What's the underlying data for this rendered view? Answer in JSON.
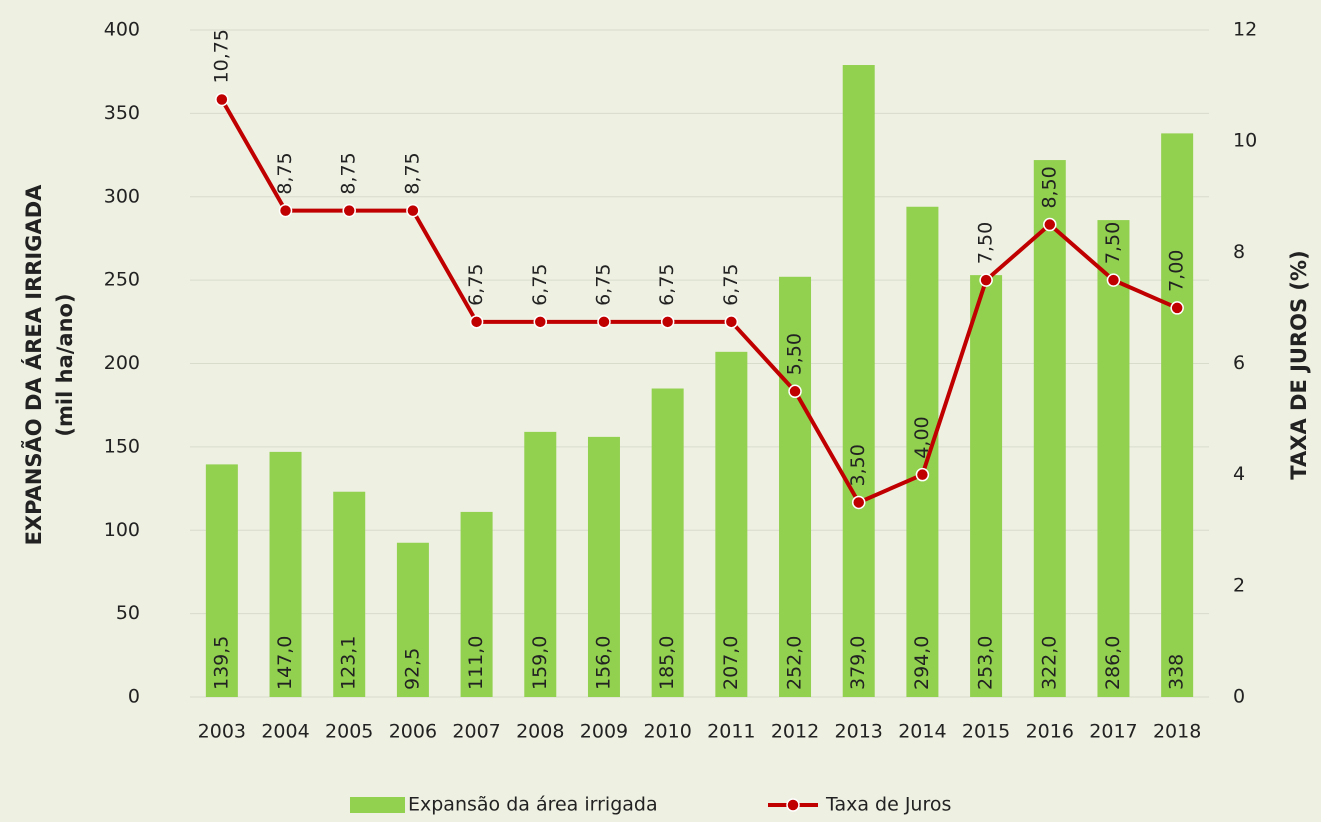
{
  "chart_data": {
    "type": "bar",
    "categories": [
      "2003",
      "2004",
      "2005",
      "2006",
      "2007",
      "2008",
      "2009",
      "2010",
      "2011",
      "2012",
      "2013",
      "2014",
      "2015",
      "2016",
      "2017",
      "2018"
    ],
    "series": [
      {
        "name": "Expansão da área irrigada",
        "color": "#92d050",
        "type": "bar",
        "values": [
          139.5,
          147,
          123.1,
          92.5,
          111,
          159,
          156,
          185,
          207,
          252,
          379,
          294,
          253,
          322,
          286,
          338
        ],
        "value_labels": [
          "139,5",
          "147,0",
          "123,1",
          "92,5",
          "111,0",
          "159,0",
          "156,0",
          "185,0",
          "207,0",
          "252,0",
          "379,0",
          "294,0",
          "253,0",
          "322,0",
          "286,0",
          "338"
        ]
      },
      {
        "name": "Taxa de Juros",
        "color": "#c00000",
        "type": "line",
        "axis": "y2",
        "values": [
          10.75,
          8.75,
          8.75,
          8.75,
          6.75,
          6.75,
          6.75,
          6.75,
          6.75,
          5.5,
          3.5,
          4,
          7.5,
          8.5,
          7.5,
          7
        ],
        "value_labels": [
          "10,75",
          "8,75",
          "8,75",
          "8,75",
          "6,75",
          "6,75",
          "6,75",
          "6,75",
          "6,75",
          "5,50",
          "3,50",
          "4,00",
          "7,50",
          "8,50",
          "7,50",
          "7,00"
        ]
      }
    ],
    "y_label": [
      "EXPANSÃO DA ÁREA IRRIGADA",
      "(mil ha/ano)"
    ],
    "y2_label": "TAXA DE JUROS (%)",
    "ylim": [
      0,
      400
    ],
    "yticks": [
      0,
      50,
      100,
      150,
      200,
      250,
      300,
      350,
      400
    ],
    "y2lim": [
      0,
      12
    ],
    "y2ticks": [
      0,
      2,
      4,
      6,
      8,
      10,
      12
    ],
    "grid": true,
    "legend": "bottom"
  }
}
